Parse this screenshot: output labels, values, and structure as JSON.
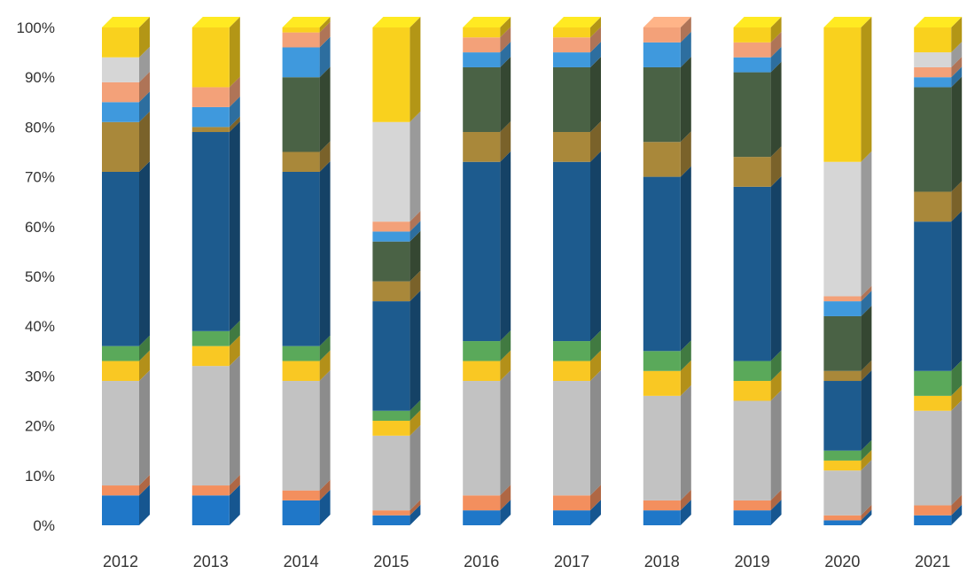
{
  "chart_data": {
    "type": "bar",
    "stacked": true,
    "categories": [
      "2012",
      "2013",
      "2014",
      "2015",
      "2016",
      "2017",
      "2018",
      "2019",
      "2020",
      "2021"
    ],
    "ylim": [
      0,
      100
    ],
    "y_ticks": [
      "0%",
      "10%",
      "20%",
      "30%",
      "40%",
      "50%",
      "60%",
      "70%",
      "80%",
      "90%",
      "100%"
    ],
    "title": "",
    "xlabel": "",
    "ylabel": "",
    "series": [
      {
        "color": "#1f77c8",
        "values": [
          6,
          6,
          5,
          2,
          3,
          3,
          3,
          3,
          1,
          2
        ]
      },
      {
        "color": "#f38f5e",
        "values": [
          2,
          2,
          2,
          1,
          3,
          3,
          2,
          2,
          1,
          2
        ]
      },
      {
        "color": "#c2c2c2",
        "values": [
          21,
          24,
          22,
          15,
          23,
          23,
          21,
          20,
          9,
          19
        ]
      },
      {
        "color": "#f9c823",
        "values": [
          4,
          4,
          4,
          3,
          4,
          4,
          5,
          4,
          2,
          3
        ]
      },
      {
        "color": "#5aa95a",
        "values": [
          3,
          3,
          3,
          2,
          4,
          4,
          4,
          4,
          2,
          5
        ]
      },
      {
        "color": "#1d5b8e",
        "values": [
          35,
          40,
          35,
          22,
          36,
          36,
          35,
          35,
          14,
          30
        ]
      },
      {
        "color": "#a9883a",
        "values": [
          10,
          1,
          4,
          4,
          6,
          6,
          7,
          6,
          2,
          6
        ]
      },
      {
        "color": "#4a6245",
        "values": [
          0,
          0,
          15,
          8,
          13,
          13,
          15,
          17,
          11,
          21
        ]
      },
      {
        "color": "#3f99dd",
        "values": [
          4,
          4,
          6,
          2,
          3,
          3,
          5,
          3,
          3,
          2
        ]
      },
      {
        "color": "#f3a179",
        "values": [
          4,
          4,
          3,
          2,
          3,
          3,
          3,
          3,
          1,
          2
        ]
      },
      {
        "color": "#d6d6d6",
        "values": [
          5,
          0,
          0,
          20,
          0,
          0,
          0,
          0,
          27,
          3
        ]
      },
      {
        "color": "#f9d11e",
        "values": [
          6,
          12,
          1,
          19,
          2,
          2,
          0,
          3,
          27,
          5
        ]
      }
    ]
  }
}
